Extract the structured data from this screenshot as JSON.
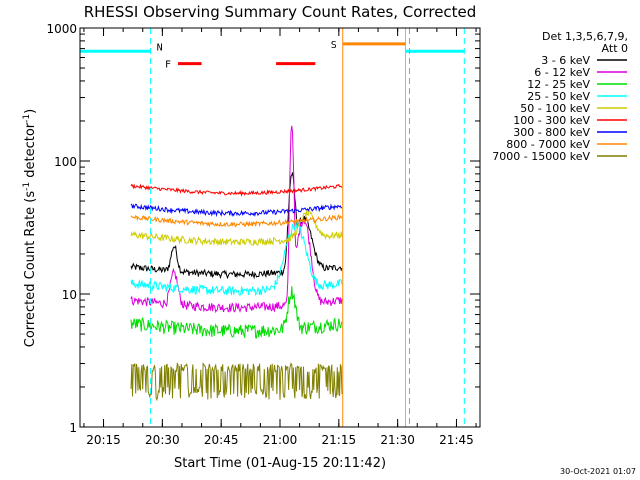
{
  "chart_data": {
    "type": "line",
    "title": "RHESSI Observing Summary Count Rates, Corrected",
    "xlabel": "Start Time (01-Aug-15 20:11:42)",
    "ylabel_main": "Corrected Count Rate (s",
    "ylabel_sup1": "-1",
    "ylabel_mid": " detector",
    "ylabel_sup2": "-1",
    "ylabel_end": ")",
    "y_scale": "log",
    "xlim": [
      "20:09",
      "21:51"
    ],
    "ylim": [
      1,
      1000
    ],
    "x_ticks": [
      "20:15",
      "20:30",
      "20:45",
      "21:00",
      "21:15",
      "21:30",
      "21:45"
    ],
    "y_ticks": [
      "1",
      "10",
      "100",
      "1000"
    ],
    "legend_header": [
      "Det 1,3,5,6,7,9,",
      "Att 0"
    ],
    "legend_position": "right",
    "grid": false,
    "series": [
      {
        "name": "3 - 6 keV",
        "color": "#000000",
        "base": 16,
        "noise": 0.06
      },
      {
        "name": "6 - 12 keV",
        "color": "#dd00dd",
        "base": 9,
        "noise": 0.08
      },
      {
        "name": "12 - 25 keV",
        "color": "#00dd00",
        "base": 6,
        "noise": 0.12
      },
      {
        "name": "25 - 50 keV",
        "color": "#00ffff",
        "base": 12,
        "noise": 0.08
      },
      {
        "name": "50 - 100 keV",
        "color": "#cccc00",
        "base": 28,
        "noise": 0.06
      },
      {
        "name": "100 - 300 keV",
        "color": "#ff0000",
        "base": 65,
        "noise": 0.03
      },
      {
        "name": "300 - 800 keV",
        "color": "#0000ff",
        "base": 46,
        "noise": 0.04
      },
      {
        "name": "800 - 7000 keV",
        "color": "#ff8800",
        "base": 38,
        "noise": 0.04
      },
      {
        "name": "7000 - 15000 keV",
        "color": "#808000",
        "base": 2.2,
        "noise": 0.3
      }
    ],
    "data_window": [
      "20:22",
      "21:16"
    ],
    "night_segments": [
      [
        "20:09",
        "20:27"
      ],
      [
        "21:32",
        "21:47"
      ]
    ],
    "night_label": "N",
    "saa_segment": [
      "21:16",
      "21:32"
    ],
    "saa_label": "S",
    "flare_label": "F",
    "flare_segments": [
      [
        "20:34",
        "20:40"
      ],
      [
        "20:59",
        "21:09"
      ]
    ],
    "flare_peak_time": "21:03",
    "timestamp": "30-Oct-2021 01:07"
  }
}
